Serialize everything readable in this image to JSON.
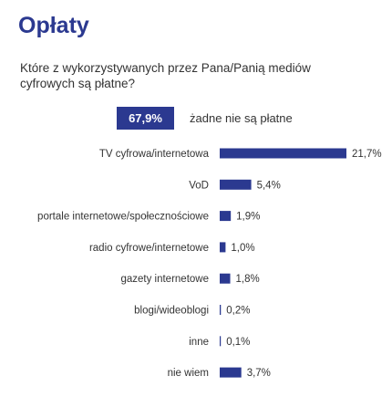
{
  "title": "Opłaty",
  "question": "Które z wykorzystywanych przez Pana/Panią mediów cyfrowych są płatne?",
  "highlight": {
    "value": "67,9%",
    "label": "żadne nie są płatne"
  },
  "colors": {
    "accent": "#2b3990",
    "text": "#333333"
  },
  "chart_data": {
    "type": "bar",
    "orientation": "horizontal",
    "categories": [
      "TV cyfrowa/internetowa",
      "VoD",
      "portale internetowe/społecznościowe",
      "radio cyfrowe/internetowe",
      "gazety internetowe",
      "blogi/wideoblogi",
      "inne",
      "nie wiem"
    ],
    "values": [
      21.7,
      5.4,
      1.9,
      1.0,
      1.8,
      0.2,
      0.1,
      3.7
    ],
    "value_labels": [
      "21,7%",
      "5,4%",
      "1,9%",
      "1,0%",
      "1,8%",
      "0,2%",
      "0,1%",
      "3,7%"
    ],
    "xlim": [
      0,
      21.7
    ],
    "grid": false,
    "legend": "none"
  }
}
